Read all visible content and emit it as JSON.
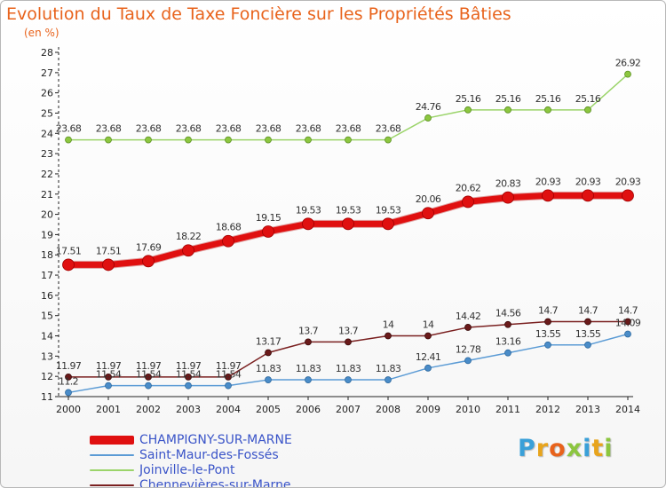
{
  "title": "Evolution du Taux de Taxe Foncière sur les Propriétés Bâties",
  "unit_label": "(en %)",
  "logo": {
    "text": "Proxiti",
    "letter_colors": [
      "#3aa0d8",
      "#e8a41c",
      "#e8631c",
      "#8cc63f",
      "#3aa0d8",
      "#e8a41c",
      "#8cc63f"
    ]
  },
  "chart_data": {
    "type": "line",
    "title": "Evolution du Taux de Taxe Foncière sur les Propriétés Bâties",
    "ylabel": "(en %)",
    "xlabel": "",
    "ylim": [
      11,
      28
    ],
    "grid": false,
    "legend_position": "bottom-left",
    "categories": [
      "2000",
      "2001",
      "2002",
      "2003",
      "2004",
      "2005",
      "2006",
      "2007",
      "2008",
      "2009",
      "2010",
      "2011",
      "2012",
      "2013",
      "2014"
    ],
    "yticks": [
      11,
      12,
      13,
      14,
      15,
      16,
      17,
      18,
      19,
      20,
      21,
      22,
      23,
      24,
      25,
      26,
      27,
      28
    ],
    "series": [
      {
        "name": "CHAMPIGNY-SUR-MARNE",
        "color": "#e01010",
        "labels": [
          "17.51",
          "17.51",
          "17.69",
          "18.22",
          "18.68",
          "19.15",
          "19.53",
          "19.53",
          "19.53",
          "20.06",
          "20.62",
          "20.83",
          "20.93",
          "20.93",
          "20.93"
        ],
        "values": [
          17.51,
          17.51,
          17.69,
          18.22,
          18.68,
          19.15,
          19.53,
          19.53,
          19.53,
          20.06,
          20.62,
          20.83,
          20.93,
          20.93,
          20.93
        ]
      },
      {
        "name": "Saint-Maur-des-Fossés",
        "color": "#5b9bd5",
        "labels": [
          "11.2",
          "11.54",
          "11.54",
          "11.54",
          "11.54",
          "11.83",
          "11.83",
          "11.83",
          "11.83",
          "12.41",
          "12.78",
          "13.16",
          "13.55",
          "13.55",
          "14.09"
        ],
        "values": [
          11.2,
          11.54,
          11.54,
          11.54,
          11.54,
          11.83,
          11.83,
          11.83,
          11.83,
          12.41,
          12.78,
          13.16,
          13.55,
          13.55,
          14.09
        ]
      },
      {
        "name": "Joinville-le-Pont",
        "color": "#9bd46a",
        "labels": [
          "23.68",
          "23.68",
          "23.68",
          "23.68",
          "23.68",
          "23.68",
          "23.68",
          "23.68",
          "23.68",
          "24.76",
          "25.16",
          "25.16",
          "25.16",
          "25.16",
          "26.92"
        ],
        "values": [
          23.68,
          23.68,
          23.68,
          23.68,
          23.68,
          23.68,
          23.68,
          23.68,
          23.68,
          24.76,
          25.16,
          25.16,
          25.16,
          25.16,
          26.92
        ]
      },
      {
        "name": "Chennevières-sur-Marne",
        "color": "#7a2020",
        "labels": [
          "11.97",
          "11.97",
          "11.97",
          "11.97",
          "11.97",
          "13.17",
          "13.7",
          "13.7",
          "14",
          "14",
          "14.42",
          "14.56",
          "14.7",
          "14.7",
          "14.7"
        ],
        "values": [
          11.97,
          11.97,
          11.97,
          11.97,
          11.97,
          13.17,
          13.7,
          13.7,
          14,
          14,
          14.42,
          14.56,
          14.7,
          14.7,
          14.7
        ]
      }
    ]
  }
}
